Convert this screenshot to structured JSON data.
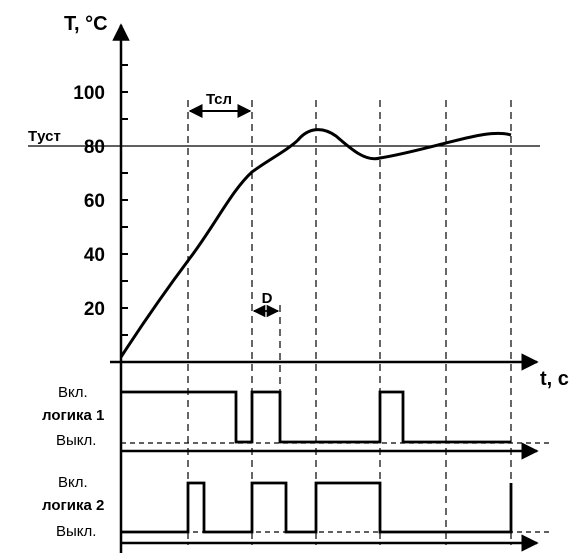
{
  "diagram": {
    "y_axis_title": "T, °C",
    "x_axis_title": "t, c",
    "y_ticks": [
      "100",
      "80",
      "60",
      "40",
      "20"
    ],
    "setpoint_label": "Tуст",
    "tsl_label": "Тсл",
    "d_label": "D",
    "logic1": {
      "on_label": "Вкл.",
      "name": "логика 1",
      "off_label": "Выкл."
    },
    "logic2": {
      "on_label": "Вкл.",
      "name": "логика 2",
      "off_label": "Выкл."
    }
  },
  "colors": {
    "line": "#000000",
    "background": "#ffffff"
  }
}
